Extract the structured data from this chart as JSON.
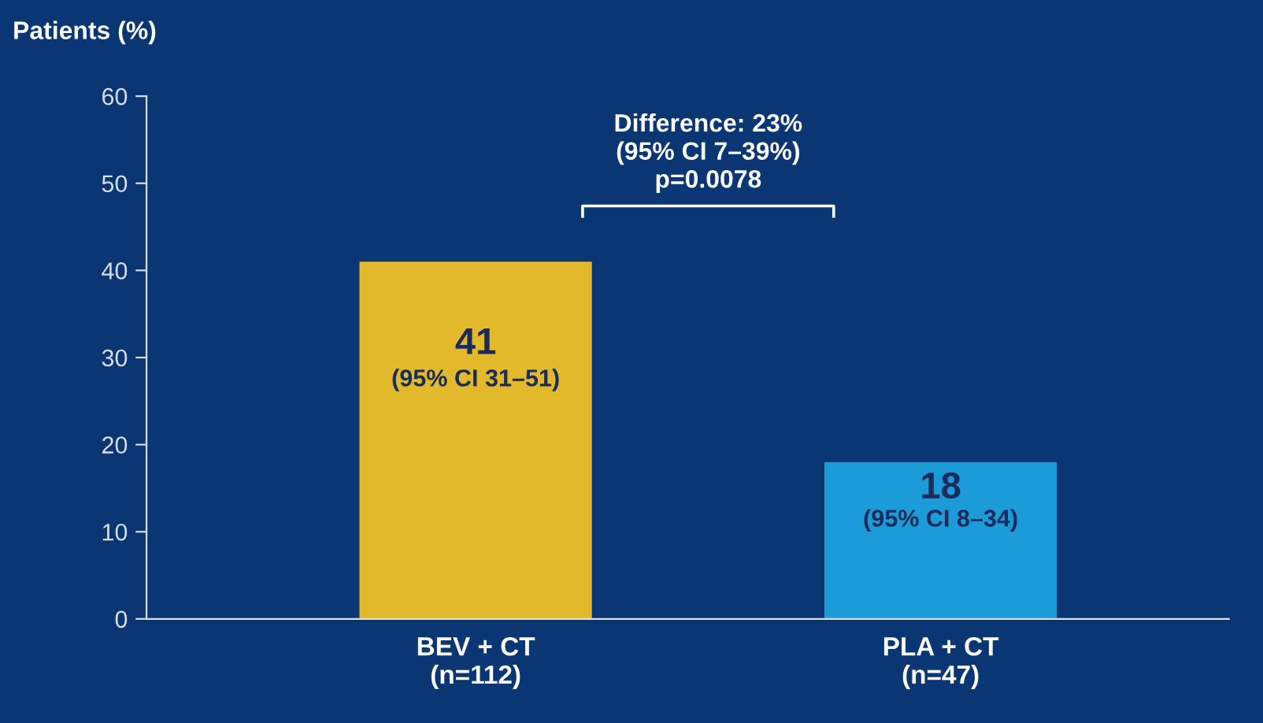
{
  "chart_data": {
    "type": "bar",
    "ylabel": "Patients (%)",
    "categories": [
      "BEV + CT\n(n=112)",
      "PLA + CT\n(n=47)"
    ],
    "values": [
      41,
      18
    ],
    "colors": [
      "#e1b92b",
      "#1b9bd7"
    ],
    "value_labels": [
      "41\n(95% CI 31–51)",
      "18\n(95% CI 8–34)"
    ],
    "annotations": [
      "Difference: 23%\n(95% CI 7–39%)\np=0.0078"
    ],
    "ylim": [
      0,
      60
    ],
    "yticks": [
      0,
      10,
      20,
      30,
      40,
      50,
      60
    ],
    "grid": false,
    "legend": false
  }
}
